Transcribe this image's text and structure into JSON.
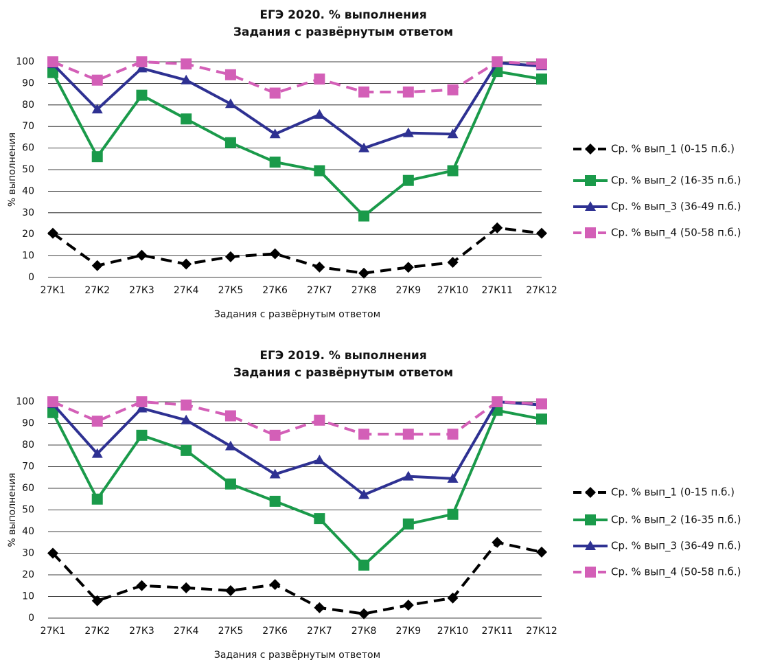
{
  "chart_data": [
    {
      "type": "line",
      "title": "ЕГЭ 2020. % выполнения",
      "subtitle": "Задания с развёрнутым ответом",
      "xlabel": "Задания с развёрнутым ответом",
      "ylabel": "% выполнения",
      "categories": [
        "27К1",
        "27К2",
        "27К3",
        "27К4",
        "27К5",
        "27К6",
        "27К7",
        "27К8",
        "27К9",
        "27К10",
        "27К11",
        "27К12"
      ],
      "series": [
        {
          "name": "Ср. % вып_1 (0-15 п.б.)",
          "color": "#000000",
          "linestyle": "dashed",
          "marker": "diamond",
          "values": [
            20.5,
            5.5,
            10.3,
            6.2,
            9.6,
            11,
            4.8,
            2,
            4.7,
            7,
            23,
            20.5
          ]
        },
        {
          "name": "Ср. % вып_2 (16-35 п.б.)",
          "color": "#1a9a4a",
          "linestyle": "solid",
          "marker": "square",
          "values": [
            95,
            56,
            84.5,
            73.5,
            62.5,
            53.5,
            49.5,
            28.5,
            45,
            49.5,
            95.5,
            92
          ]
        },
        {
          "name": "Ср. % вып_3 (36-49 п.б.)",
          "color": "#2e3192",
          "linestyle": "solid",
          "marker": "triangle",
          "values": [
            99,
            78,
            97,
            91.5,
            80.5,
            66.5,
            75.5,
            60,
            67,
            66.5,
            99.5,
            98
          ]
        },
        {
          "name": "Ср. % вып_4 (50-58 п.б.)",
          "color": "#d35fb7",
          "linestyle": "dashed",
          "marker": "square",
          "values": [
            100,
            91.5,
            100,
            99,
            94,
            85.5,
            92,
            86,
            86,
            87,
            100,
            99
          ]
        }
      ],
      "ylim": [
        0,
        100
      ],
      "yticks": [
        0,
        10,
        20,
        30,
        40,
        50,
        60,
        70,
        80,
        90,
        100
      ],
      "grid": true,
      "legend": "right"
    },
    {
      "type": "line",
      "title": "ЕГЭ 2019. % выполнения",
      "subtitle": "Задания с развёрнутым ответом",
      "xlabel": "Задания с развёрнутым ответом",
      "ylabel": "% выполнения",
      "categories": [
        "27К1",
        "27К2",
        "27К3",
        "27К4",
        "27К5",
        "27К6",
        "27К7",
        "27К8",
        "27К9",
        "27К10",
        "27К11",
        "27К12"
      ],
      "series": [
        {
          "name": "Ср. % вып_1 (0-15 п.б.)",
          "color": "#000000",
          "linestyle": "dashed",
          "marker": "diamond",
          "values": [
            30,
            8,
            15,
            14,
            12.7,
            15.5,
            4.8,
            2,
            6,
            9.3,
            35,
            30.5
          ]
        },
        {
          "name": "Ср. % вып_2 (16-35 п.б.)",
          "color": "#1a9a4a",
          "linestyle": "solid",
          "marker": "square",
          "values": [
            95,
            55,
            84.5,
            77.5,
            62,
            54,
            46,
            24.5,
            43.5,
            48,
            96,
            92
          ]
        },
        {
          "name": "Ср. % вып_3 (36-49 п.б.)",
          "color": "#2e3192",
          "linestyle": "solid",
          "marker": "triangle",
          "values": [
            99,
            76,
            97,
            91.5,
            79.5,
            66.5,
            73,
            57,
            65.5,
            64.5,
            100,
            98.5
          ]
        },
        {
          "name": "Ср. % вып_4 (50-58 п.б.)",
          "color": "#d35fb7",
          "linestyle": "dashed",
          "marker": "square",
          "values": [
            100,
            91,
            100,
            98.5,
            93.5,
            84.5,
            91.5,
            85,
            85,
            85,
            100,
            99
          ]
        }
      ],
      "ylim": [
        0,
        100
      ],
      "yticks": [
        0,
        10,
        20,
        30,
        40,
        50,
        60,
        70,
        80,
        90,
        100
      ],
      "grid": true,
      "legend": "right"
    }
  ]
}
